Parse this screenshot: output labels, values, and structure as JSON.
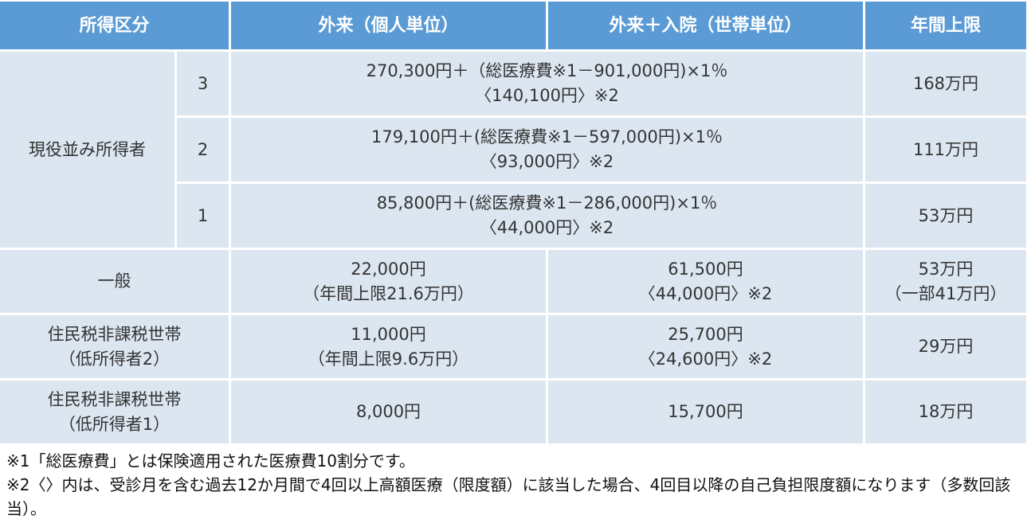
{
  "table": {
    "header": [
      "所得区分",
      "外来（個人単位）",
      "外来＋入院（世帯単位）",
      "年間上限"
    ],
    "active": {
      "group": "現役並み所得者",
      "tiers": [
        {
          "level": "3",
          "combined": [
            "270,300円＋（総医療費※1－901,000円)×1％",
            "〈140,100円〉※2"
          ],
          "limit": "168万円"
        },
        {
          "level": "2",
          "combined": [
            "179,100円＋(総医療費※1－597,000円)×1％",
            "〈93,000円〉※2"
          ],
          "limit": "111万円"
        },
        {
          "level": "1",
          "combined": [
            "85,800円＋(総医療費※1－286,000円)×1％",
            "〈44,000円〉※2"
          ],
          "limit": "53万円"
        }
      ]
    },
    "rows": [
      {
        "label": [
          "一般"
        ],
        "outpatient": [
          "22,000円",
          "（年間上限21.6万円）"
        ],
        "combined": [
          "61,500円",
          "〈44,000円〉※2"
        ],
        "limit": [
          "53万円",
          "（一部41万円）"
        ]
      },
      {
        "label": [
          "住民税非課税世帯",
          "（低所得者2）"
        ],
        "outpatient": [
          "11,000円",
          "（年間上限9.6万円）"
        ],
        "combined": [
          "25,700円",
          "〈24,600円〉※2"
        ],
        "limit": [
          "29万円"
        ]
      },
      {
        "label": [
          "住民税非課税世帯",
          "（低所得者1）"
        ],
        "outpatient": [
          "8,000円"
        ],
        "combined": [
          "15,700円"
        ],
        "limit": [
          "18万円"
        ]
      }
    ]
  },
  "notes": [
    "※1「総医療費」とは保険適用された医療費10割分です。",
    "※2〈〉内は、受診月を含む過去12か月間で4回以上高額医療（限度額）に該当した場合、4回目以降の自己負担限度額になります（多数回該当）。"
  ]
}
